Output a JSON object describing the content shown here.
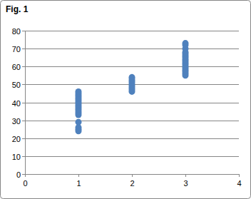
{
  "chart_data": {
    "type": "scatter",
    "title": "Fig. 1",
    "x": [
      1,
      1,
      1,
      1,
      1,
      1,
      1,
      1,
      1,
      1,
      1,
      1,
      1,
      1,
      1,
      1,
      1,
      1,
      2,
      2,
      2,
      2,
      2,
      2,
      2,
      2,
      2,
      3,
      3,
      3,
      3,
      3,
      3,
      3,
      3,
      3,
      3,
      3,
      3,
      3,
      3,
      3,
      3,
      3
    ],
    "values": [
      24,
      25,
      26,
      29,
      33,
      34,
      35,
      36,
      37,
      38,
      39,
      40,
      41,
      42,
      43,
      44,
      45,
      46,
      46,
      47,
      48,
      49,
      50,
      51,
      52,
      53,
      54,
      55,
      56,
      57,
      58,
      59,
      60,
      61,
      62,
      63,
      64,
      65,
      66,
      67,
      68,
      70,
      72,
      73
    ],
    "color": "#4f81bd",
    "marker": "circle",
    "xlim": [
      0,
      4
    ],
    "xticks": [
      0,
      1,
      2,
      3,
      4
    ],
    "ylim": [
      0,
      80
    ],
    "yticks": [
      0,
      10,
      20,
      30,
      40,
      50,
      60,
      70,
      80
    ],
    "grid": true
  }
}
